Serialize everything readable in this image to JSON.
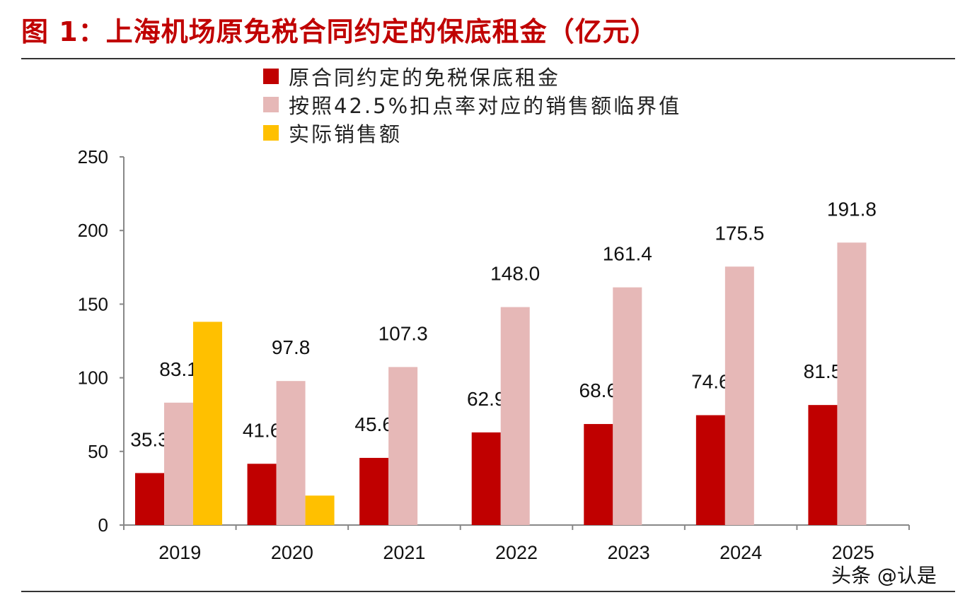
{
  "title": "图 1：上海机场原免税合同约定的保底租金（亿元）",
  "watermark": "头条 @认是",
  "chart_data": {
    "type": "bar",
    "title": "图 1：上海机场原免税合同约定的保底租金（亿元）",
    "xlabel": "",
    "ylabel": "",
    "ylim": [
      0,
      250
    ],
    "yticks": [
      0,
      50,
      100,
      150,
      200,
      250
    ],
    "grid": false,
    "legend_position": "top-left",
    "categories": [
      "2019",
      "2020",
      "2021",
      "2022",
      "2023",
      "2024",
      "2025"
    ],
    "series": [
      {
        "name": "原合同约定的免税保底租金",
        "color": "#c00000",
        "values": [
          35.3,
          41.6,
          45.6,
          62.9,
          68.6,
          74.6,
          81.5
        ],
        "labels": [
          "35.3",
          "41.6",
          "45.6",
          "62.9",
          "68.6",
          "74.6",
          "81.5"
        ]
      },
      {
        "name": "按照42.5%扣点率对应的销售额临界值",
        "color": "#e6b8b7",
        "values": [
          83.1,
          97.8,
          107.3,
          148.0,
          161.4,
          175.5,
          191.8
        ],
        "labels": [
          "83.1",
          "97.8",
          "107.3",
          "148.0",
          "161.4",
          "175.5",
          "191.8"
        ]
      },
      {
        "name": "实际销售额",
        "color": "#ffc000",
        "values": [
          138,
          20,
          null,
          null,
          null,
          null,
          null
        ],
        "labels": []
      }
    ]
  }
}
